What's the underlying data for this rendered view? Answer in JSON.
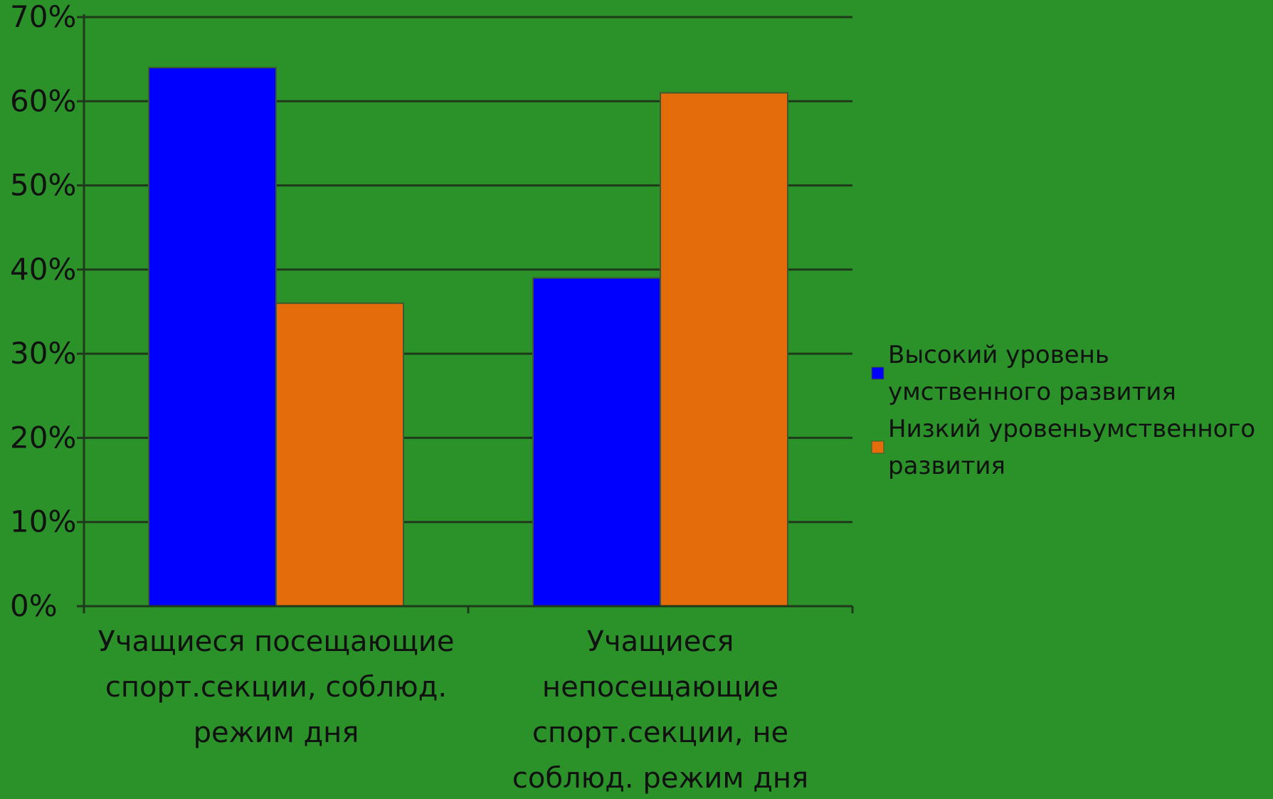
{
  "chart_data": {
    "type": "bar",
    "categories": [
      [
        "Учащиеся посещающие",
        "спорт.секции, соблюд.",
        "режим дня"
      ],
      [
        "Учащиеся",
        "непосещающие",
        "спорт.секции, не",
        "соблюд. режим дня"
      ]
    ],
    "series": [
      {
        "name": [
          "Высокий уровень",
          "умственного развития"
        ],
        "color": "#0000ff",
        "values": [
          0.64,
          0.39
        ]
      },
      {
        "name": [
          "Низкий уровеньумственного",
          "развития"
        ],
        "color": "#e46c0a",
        "values": [
          0.36,
          0.61
        ]
      }
    ],
    "yticks": [
      "0%",
      "10%",
      "20%",
      "30%",
      "40%",
      "50%",
      "60%",
      "70%"
    ],
    "ylim": [
      0,
      0.7
    ],
    "grid": true,
    "legend_position": "right",
    "background": "#2a9229",
    "gridline_color": "#1f3a1a"
  }
}
